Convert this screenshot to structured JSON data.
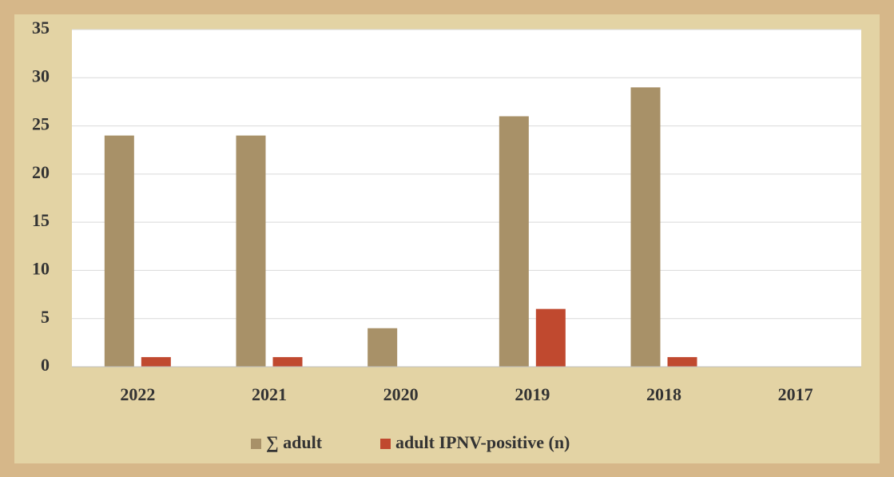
{
  "chart_data": {
    "type": "bar",
    "categories": [
      "2022",
      "2021",
      "2020",
      "2019",
      "2018",
      "2017"
    ],
    "series": [
      {
        "name": "∑ adult",
        "color": "#a89168",
        "values": [
          24,
          24,
          4,
          26,
          29,
          0
        ]
      },
      {
        "name": "adult IPNV-positive (n)",
        "color": "#c0492f",
        "values": [
          1,
          1,
          0,
          6,
          1,
          0
        ]
      }
    ],
    "ylim": [
      0,
      35
    ],
    "yticks": [
      0,
      5,
      10,
      15,
      20,
      25,
      30,
      35
    ],
    "grid": true,
    "legend": "bottom"
  }
}
